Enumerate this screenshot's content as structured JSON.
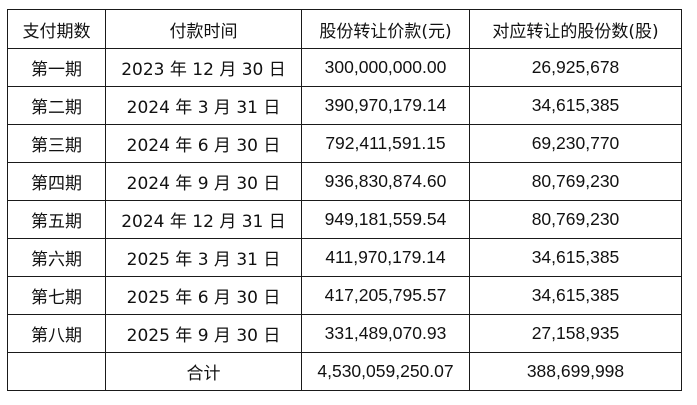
{
  "table": {
    "headers": [
      "支付期数",
      "付款时间",
      "股份转让价款(元)",
      "对应转让的股份数(股)"
    ],
    "rows": [
      {
        "period": "第一期",
        "date": "2023 年 12 月 30 日",
        "price": "300,000,000.00",
        "shares": "26,925,678"
      },
      {
        "period": "第二期",
        "date": "2024 年 3 月 31 日",
        "price": "390,970,179.14",
        "shares": "34,615,385"
      },
      {
        "period": "第三期",
        "date": "2024 年 6 月 30 日",
        "price": "792,411,591.15",
        "shares": "69,230,770"
      },
      {
        "period": "第四期",
        "date": "2024 年 9 月 30 日",
        "price": "936,830,874.60",
        "shares": "80,769,230"
      },
      {
        "period": "第五期",
        "date": "2024 年 12 月 31 日",
        "price": "949,181,559.54",
        "shares": "80,769,230"
      },
      {
        "period": "第六期",
        "date": "2025 年 3 月 31 日",
        "price": "411,970,179.14",
        "shares": "34,615,385"
      },
      {
        "period": "第七期",
        "date": "2025 年 6 月 30 日",
        "price": "417,205,795.57",
        "shares": "34,615,385"
      },
      {
        "period": "第八期",
        "date": "2025 年 9 月 30 日",
        "price": "331,489,070.93",
        "shares": "27,158,935"
      }
    ],
    "total": {
      "period": "",
      "label": "合计",
      "price": "4,530,059,250.07",
      "shares": "388,699,998"
    }
  }
}
